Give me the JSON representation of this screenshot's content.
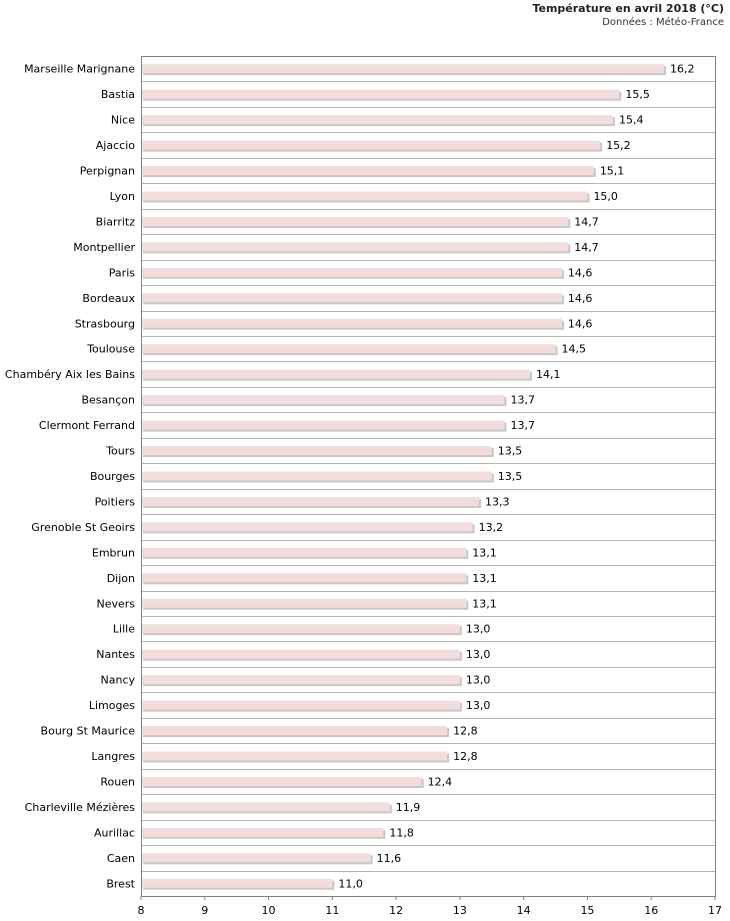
{
  "header": {
    "title": "Température en avril 2018 (°C)",
    "subtitle": "Données : Météo-France"
  },
  "chart_data": {
    "type": "bar",
    "orientation": "horizontal",
    "title": "Température en avril 2018 (°C)",
    "subtitle": "Données : Météo-France",
    "categories": [
      "Marseille Marignane",
      "Bastia",
      "Nice",
      "Ajaccio",
      "Perpignan",
      "Lyon",
      "Biarritz",
      "Montpellier",
      "Paris",
      "Bordeaux",
      "Strasbourg",
      "Toulouse",
      "Chambéry Aix les Bains",
      "Besançon",
      "Clermont Ferrand",
      "Tours",
      "Bourges",
      "Poitiers",
      "Grenoble St Geoirs",
      "Embrun",
      "Dijon",
      "Nevers",
      "Lille",
      "Nantes",
      "Nancy",
      "Limoges",
      "Bourg St Maurice",
      "Langres",
      "Rouen",
      "Charleville Mézières",
      "Aurillac",
      "Caen",
      "Brest"
    ],
    "values": [
      16.2,
      15.5,
      15.4,
      15.2,
      15.1,
      15.0,
      14.7,
      14.7,
      14.6,
      14.6,
      14.6,
      14.5,
      14.1,
      13.7,
      13.7,
      13.5,
      13.5,
      13.3,
      13.2,
      13.1,
      13.1,
      13.1,
      13.0,
      13.0,
      13.0,
      13.0,
      12.8,
      12.8,
      12.4,
      11.9,
      11.8,
      11.6,
      11.0
    ],
    "value_labels": [
      "16,2",
      "15,5",
      "15,4",
      "15,2",
      "15,1",
      "15,0",
      "14,7",
      "14,7",
      "14,6",
      "14,6",
      "14,6",
      "14,5",
      "14,1",
      "13,7",
      "13,7",
      "13,5",
      "13,5",
      "13,3",
      "13,2",
      "13,1",
      "13,1",
      "13,1",
      "13,0",
      "13,0",
      "13,0",
      "13,0",
      "12,8",
      "12,8",
      "12,4",
      "11,9",
      "11,8",
      "11,6",
      "11,0"
    ],
    "xlim": [
      8,
      17
    ],
    "x_ticks": [
      "8",
      "9",
      "10",
      "11",
      "12",
      "13",
      "14",
      "15",
      "16",
      "17"
    ],
    "grid": "horizontal separators",
    "colors": {
      "bar": "#f2dcdc",
      "bar_shadow": "#c8c8c8",
      "frame": "#808080"
    }
  }
}
